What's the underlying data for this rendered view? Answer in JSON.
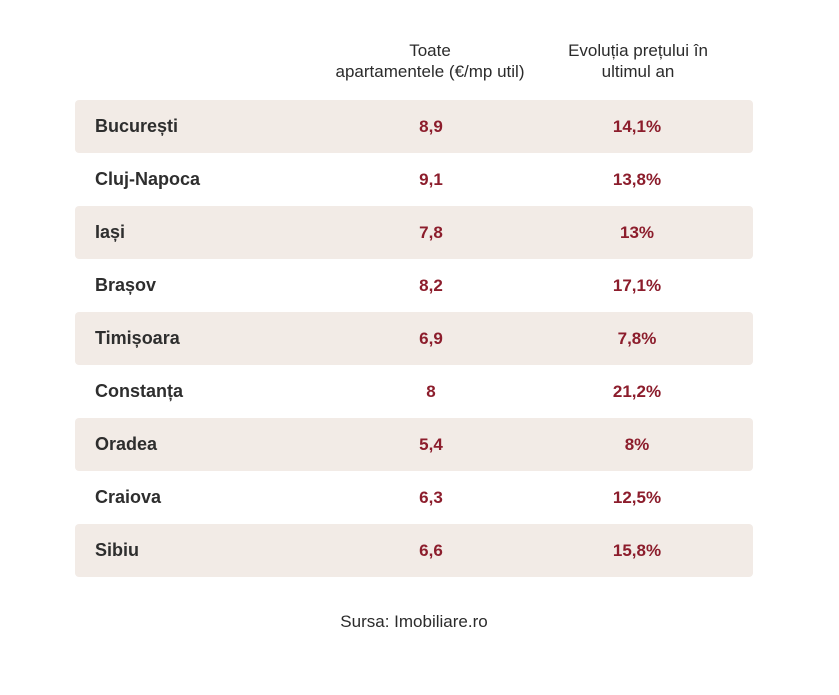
{
  "header": {
    "price_line1": "Toate",
    "price_line2": "apartamentele  (€/mp util)",
    "evolution_line1": "Evoluția prețului în",
    "evolution_line2": "ultimul an"
  },
  "rows": [
    {
      "city": "București",
      "price": "8,9",
      "evolution": "14,1%"
    },
    {
      "city": "Cluj-Napoca",
      "price": "9,1",
      "evolution": "13,8%"
    },
    {
      "city": "Iași",
      "price": "7,8",
      "evolution": "13%"
    },
    {
      "city": "Brașov",
      "price": "8,2",
      "evolution": "17,1%"
    },
    {
      "city": "Timișoara",
      "price": "6,9",
      "evolution": "7,8%"
    },
    {
      "city": "Constanța",
      "price": "8",
      "evolution": "21,2%"
    },
    {
      "city": "Oradea",
      "price": "5,4",
      "evolution": "8%"
    },
    {
      "city": "Craiova",
      "price": "6,3",
      "evolution": "12,5%"
    },
    {
      "city": "Sibiu",
      "price": "6,6",
      "evolution": "15,8%"
    }
  ],
  "source": "Sursa: Imobiliare.ro",
  "colors": {
    "accent": "#8c1d2c",
    "row_shade": "#f2ebe6",
    "text": "#2e2e2e"
  }
}
